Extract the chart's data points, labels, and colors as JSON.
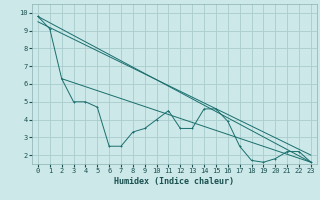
{
  "xlabel": "Humidex (Indice chaleur)",
  "ylabel": "",
  "bg_color": "#cce8e8",
  "grid_color": "#aacccc",
  "line_color": "#1a6e6e",
  "xlim": [
    -0.5,
    23.5
  ],
  "ylim": [
    1.5,
    10.5
  ],
  "xticks": [
    0,
    1,
    2,
    3,
    4,
    5,
    6,
    7,
    8,
    9,
    10,
    11,
    12,
    13,
    14,
    15,
    16,
    17,
    18,
    19,
    20,
    21,
    22,
    23
  ],
  "yticks": [
    2,
    3,
    4,
    5,
    6,
    7,
    8,
    9,
    10
  ],
  "line1_x": [
    0,
    1,
    2,
    3,
    4,
    5,
    6,
    7,
    8,
    9,
    10,
    11,
    12,
    13,
    14,
    15,
    16,
    17,
    18,
    19,
    20,
    21,
    22,
    23
  ],
  "line1_y": [
    9.8,
    9.1,
    6.3,
    5.0,
    5.0,
    4.7,
    2.5,
    2.5,
    3.3,
    3.5,
    4.0,
    4.5,
    3.5,
    3.5,
    4.6,
    4.6,
    3.9,
    2.5,
    1.7,
    1.6,
    1.8,
    2.2,
    2.2,
    1.6
  ],
  "line2_x": [
    0,
    23
  ],
  "line2_y": [
    9.8,
    1.6
  ],
  "line3_x": [
    2,
    23
  ],
  "line3_y": [
    6.3,
    1.6
  ],
  "line4_x": [
    0,
    23
  ],
  "line4_y": [
    9.5,
    2.0
  ],
  "lw": 0.7,
  "ms": 2.0,
  "tick_fontsize": 5.0,
  "xlabel_fontsize": 6.0
}
